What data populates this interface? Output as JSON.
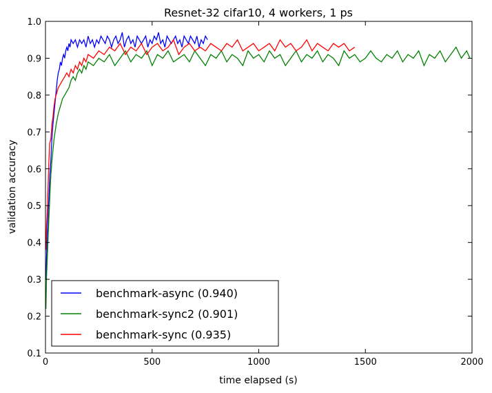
{
  "chart_data": {
    "type": "line",
    "title": "Resnet-32 cifar10, 4 workers, 1 ps",
    "xlabel": "time elapsed (s)",
    "ylabel": "validation accuracy",
    "xlim": [
      0,
      2000
    ],
    "ylim": [
      0.1,
      1.0
    ],
    "xticks": [
      0,
      500,
      1000,
      1500,
      2000
    ],
    "yticks": [
      0.1,
      0.2,
      0.3,
      0.4,
      0.5,
      0.6,
      0.7,
      0.8,
      0.9,
      1.0
    ],
    "xtick_labels": [
      "0",
      "500",
      "1000",
      "1500",
      "2000"
    ],
    "ytick_labels": [
      "0.1",
      "0.2",
      "0.3",
      "0.4",
      "0.5",
      "0.6",
      "0.7",
      "0.8",
      "0.9",
      "1.0"
    ],
    "grid": false,
    "legend_position": "lower-left",
    "series": [
      {
        "name": "benchmark-async (0.940)",
        "color": "#0000ff",
        "x": [
          2,
          5,
          8,
          12,
          16,
          20,
          25,
          30,
          35,
          40,
          45,
          50,
          55,
          60,
          65,
          70,
          75,
          80,
          85,
          90,
          95,
          100,
          105,
          110,
          115,
          120,
          130,
          140,
          150,
          160,
          170,
          180,
          190,
          200,
          210,
          220,
          230,
          240,
          250,
          260,
          270,
          280,
          290,
          300,
          310,
          320,
          330,
          340,
          350,
          360,
          370,
          380,
          390,
          400,
          410,
          420,
          430,
          440,
          450,
          460,
          470,
          480,
          490,
          500,
          510,
          520,
          530,
          540,
          550,
          560,
          570,
          580,
          590,
          600,
          610,
          620,
          630,
          640,
          650,
          660,
          670,
          680,
          690,
          700,
          710,
          720,
          730,
          740,
          750,
          760
        ],
        "y": [
          0.3,
          0.36,
          0.42,
          0.47,
          0.52,
          0.58,
          0.62,
          0.68,
          0.72,
          0.75,
          0.78,
          0.81,
          0.84,
          0.86,
          0.87,
          0.89,
          0.88,
          0.9,
          0.91,
          0.9,
          0.92,
          0.93,
          0.92,
          0.94,
          0.93,
          0.95,
          0.94,
          0.95,
          0.93,
          0.95,
          0.94,
          0.95,
          0.93,
          0.96,
          0.94,
          0.95,
          0.93,
          0.95,
          0.94,
          0.96,
          0.95,
          0.94,
          0.96,
          0.95,
          0.93,
          0.95,
          0.96,
          0.94,
          0.95,
          0.97,
          0.93,
          0.95,
          0.96,
          0.94,
          0.95,
          0.93,
          0.96,
          0.95,
          0.94,
          0.95,
          0.96,
          0.93,
          0.95,
          0.94,
          0.96,
          0.95,
          0.97,
          0.94,
          0.95,
          0.93,
          0.96,
          0.95,
          0.94,
          0.95,
          0.96,
          0.94,
          0.95,
          0.93,
          0.96,
          0.95,
          0.94,
          0.96,
          0.95,
          0.94,
          0.96,
          0.93,
          0.95,
          0.94,
          0.96,
          0.95
        ]
      },
      {
        "name": "benchmark-sync2 (0.901)",
        "color": "#008000",
        "x": [
          2,
          5,
          10,
          15,
          20,
          25,
          30,
          35,
          40,
          50,
          60,
          70,
          80,
          90,
          100,
          110,
          120,
          130,
          140,
          150,
          160,
          170,
          180,
          190,
          200,
          225,
          250,
          275,
          300,
          325,
          350,
          375,
          400,
          425,
          450,
          475,
          500,
          525,
          550,
          575,
          600,
          625,
          650,
          675,
          700,
          725,
          750,
          775,
          800,
          825,
          850,
          875,
          900,
          925,
          950,
          975,
          1000,
          1025,
          1050,
          1075,
          1100,
          1125,
          1150,
          1175,
          1200,
          1225,
          1250,
          1275,
          1300,
          1325,
          1350,
          1375,
          1400,
          1425,
          1450,
          1475,
          1500,
          1525,
          1550,
          1575,
          1600,
          1625,
          1650,
          1675,
          1700,
          1725,
          1750,
          1775,
          1800,
          1825,
          1850,
          1875,
          1900,
          1925,
          1950,
          1975,
          1990
        ],
        "y": [
          0.22,
          0.31,
          0.38,
          0.45,
          0.52,
          0.58,
          0.62,
          0.65,
          0.68,
          0.72,
          0.75,
          0.77,
          0.79,
          0.8,
          0.81,
          0.82,
          0.84,
          0.85,
          0.84,
          0.86,
          0.87,
          0.86,
          0.88,
          0.87,
          0.89,
          0.88,
          0.9,
          0.89,
          0.91,
          0.88,
          0.9,
          0.92,
          0.89,
          0.91,
          0.9,
          0.92,
          0.88,
          0.91,
          0.9,
          0.92,
          0.89,
          0.9,
          0.91,
          0.89,
          0.92,
          0.9,
          0.88,
          0.91,
          0.9,
          0.92,
          0.89,
          0.91,
          0.9,
          0.88,
          0.92,
          0.9,
          0.91,
          0.89,
          0.92,
          0.9,
          0.91,
          0.88,
          0.9,
          0.92,
          0.89,
          0.91,
          0.9,
          0.92,
          0.89,
          0.91,
          0.9,
          0.88,
          0.92,
          0.9,
          0.91,
          0.89,
          0.9,
          0.92,
          0.9,
          0.89,
          0.91,
          0.9,
          0.92,
          0.89,
          0.91,
          0.9,
          0.92,
          0.88,
          0.91,
          0.9,
          0.92,
          0.89,
          0.91,
          0.93,
          0.9,
          0.92,
          0.9
        ]
      },
      {
        "name": "benchmark-sync (0.935)",
        "color": "#ff0000",
        "x": [
          2,
          5,
          8,
          12,
          16,
          20,
          25,
          30,
          35,
          40,
          45,
          50,
          60,
          70,
          80,
          90,
          100,
          110,
          120,
          130,
          140,
          150,
          160,
          170,
          180,
          190,
          200,
          225,
          250,
          275,
          300,
          325,
          350,
          375,
          400,
          425,
          450,
          475,
          500,
          525,
          550,
          575,
          600,
          625,
          650,
          675,
          700,
          725,
          750,
          775,
          800,
          825,
          850,
          875,
          900,
          925,
          950,
          975,
          1000,
          1025,
          1050,
          1075,
          1100,
          1125,
          1150,
          1175,
          1200,
          1225,
          1250,
          1275,
          1300,
          1325,
          1350,
          1375,
          1400,
          1425,
          1450
        ],
        "y": [
          0.38,
          0.45,
          0.48,
          0.55,
          0.62,
          0.67,
          0.68,
          0.72,
          0.74,
          0.77,
          0.79,
          0.8,
          0.82,
          0.83,
          0.84,
          0.85,
          0.86,
          0.85,
          0.87,
          0.86,
          0.88,
          0.87,
          0.89,
          0.88,
          0.9,
          0.89,
          0.91,
          0.9,
          0.92,
          0.91,
          0.93,
          0.92,
          0.94,
          0.91,
          0.93,
          0.92,
          0.94,
          0.91,
          0.93,
          0.94,
          0.92,
          0.93,
          0.95,
          0.91,
          0.93,
          0.94,
          0.92,
          0.93,
          0.92,
          0.94,
          0.93,
          0.92,
          0.94,
          0.93,
          0.95,
          0.92,
          0.93,
          0.94,
          0.92,
          0.93,
          0.94,
          0.92,
          0.95,
          0.93,
          0.94,
          0.92,
          0.93,
          0.95,
          0.92,
          0.94,
          0.93,
          0.92,
          0.94,
          0.93,
          0.94,
          0.92,
          0.93
        ]
      }
    ]
  }
}
